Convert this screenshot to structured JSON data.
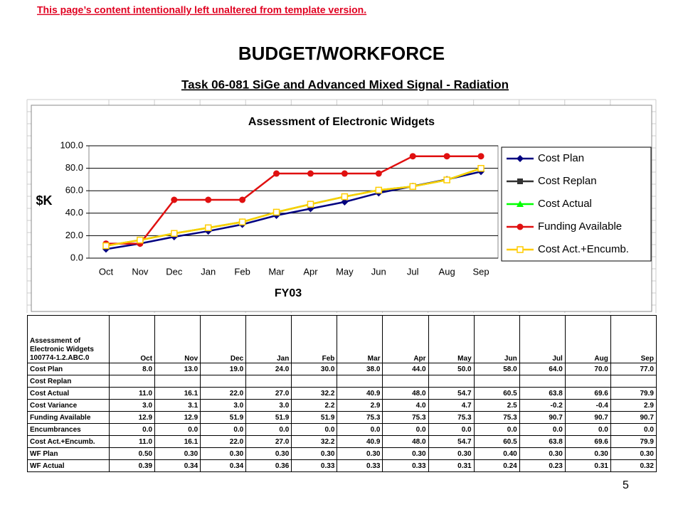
{
  "header": {
    "notice": "This page’s content intentionally left unaltered from template version.",
    "title": "BUDGET/WORKFORCE",
    "subtitle": "Task 06-081 SiGe and Advanced Mixed Signal - Radiation"
  },
  "chart_data": {
    "type": "line",
    "title": "Assessment of Electronic Widgets",
    "y_label": "$K",
    "x_label": "FY03",
    "categories": [
      "Oct",
      "Nov",
      "Dec",
      "Jan",
      "Feb",
      "Mar",
      "Apr",
      "May",
      "Jun",
      "Jul",
      "Aug",
      "Sep"
    ],
    "ylim": [
      0,
      100
    ],
    "yticks": [
      {
        "value": 0,
        "label": "0.0"
      },
      {
        "value": 20,
        "label": "20.0"
      },
      {
        "value": 40,
        "label": "40.0"
      },
      {
        "value": 60,
        "label": "60.0"
      },
      {
        "value": 80,
        "label": "80.0"
      },
      {
        "value": 100,
        "label": "100.0"
      }
    ],
    "grid": true,
    "legend": "right",
    "series": [
      {
        "name": "Cost Plan",
        "color": "#000080",
        "marker": "diamond",
        "values": [
          8,
          13,
          19,
          24,
          30,
          38,
          44,
          50,
          58,
          64,
          70,
          77
        ]
      },
      {
        "name": "Cost Replan",
        "color": "#333333",
        "marker": "square",
        "values": [
          null,
          null,
          null,
          null,
          null,
          null,
          null,
          null,
          null,
          null,
          null,
          null
        ]
      },
      {
        "name": "Cost Actual",
        "color": "#00ff00",
        "marker": "triangle",
        "values": [
          11,
          16.1,
          22,
          27,
          32.2,
          40.9,
          48,
          54.7,
          60.5,
          63.8,
          69.6,
          79.9
        ]
      },
      {
        "name": "Funding Available",
        "color": "#e01010",
        "marker": "circle",
        "values": [
          12.9,
          12.9,
          51.9,
          51.9,
          51.9,
          75.3,
          75.3,
          75.3,
          75.3,
          90.7,
          90.7,
          90.7
        ]
      },
      {
        "name": "Cost Act.+Encumb.",
        "color": "#ffcc00",
        "marker": "open-square",
        "values": [
          11,
          16.1,
          22,
          27,
          32.2,
          40.9,
          48,
          54.7,
          60.5,
          63.8,
          69.6,
          79.9
        ]
      }
    ]
  },
  "table": {
    "corner_title": "Assessment of Electronic Widgets",
    "corner_code": "100774-1.2.ABC.0",
    "columns": [
      "Oct",
      "Nov",
      "Dec",
      "Jan",
      "Feb",
      "Mar",
      "Apr",
      "May",
      "Jun",
      "Jul",
      "Aug",
      "Sep"
    ],
    "rows": [
      {
        "label": "Cost Plan",
        "cells": [
          "8.0",
          "13.0",
          "19.0",
          "24.0",
          "30.0",
          "38.0",
          "44.0",
          "50.0",
          "58.0",
          "64.0",
          "70.0",
          "77.0"
        ]
      },
      {
        "label": "Cost Replan",
        "cells": []
      },
      {
        "label": "Cost Actual",
        "cells": [
          "11.0",
          "16.1",
          "22.0",
          "27.0",
          "32.2",
          "40.9",
          "48.0",
          "54.7",
          "60.5",
          "63.8",
          "69.6",
          "79.9"
        ]
      },
      {
        "label": "Cost Variance",
        "cells": [
          "3.0",
          "3.1",
          "3.0",
          "3.0",
          "2.2",
          "2.9",
          "4.0",
          "4.7",
          "2.5",
          "-0.2",
          "-0.4",
          "2.9"
        ]
      },
      {
        "label": "Funding Available",
        "cells": [
          "12.9",
          "12.9",
          "51.9",
          "51.9",
          "51.9",
          "75.3",
          "75.3",
          "75.3",
          "75.3",
          "90.7",
          "90.7",
          "90.7"
        ]
      },
      {
        "label": "Encumbrances",
        "cells": [
          "0.0",
          "0.0",
          "0.0",
          "0.0",
          "0.0",
          "0.0",
          "0.0",
          "0.0",
          "0.0",
          "0.0",
          "0.0",
          "0.0"
        ]
      },
      {
        "label": "Cost Act.+Encumb.",
        "cells": [
          "11.0",
          "16.1",
          "22.0",
          "27.0",
          "32.2",
          "40.9",
          "48.0",
          "54.7",
          "60.5",
          "63.8",
          "69.6",
          "79.9"
        ]
      },
      {
        "label": "WF Plan",
        "cells": [
          "0.50",
          "0.30",
          "0.30",
          "0.30",
          "0.30",
          "0.30",
          "0.30",
          "0.30",
          "0.40",
          "0.30",
          "0.30",
          "0.30"
        ]
      },
      {
        "label": "WF Actual",
        "cells": [
          "0.39",
          "0.34",
          "0.34",
          "0.36",
          "0.33",
          "0.33",
          "0.33",
          "0.31",
          "0.24",
          "0.23",
          "0.31",
          "0.32"
        ]
      }
    ]
  },
  "page_number": "5"
}
